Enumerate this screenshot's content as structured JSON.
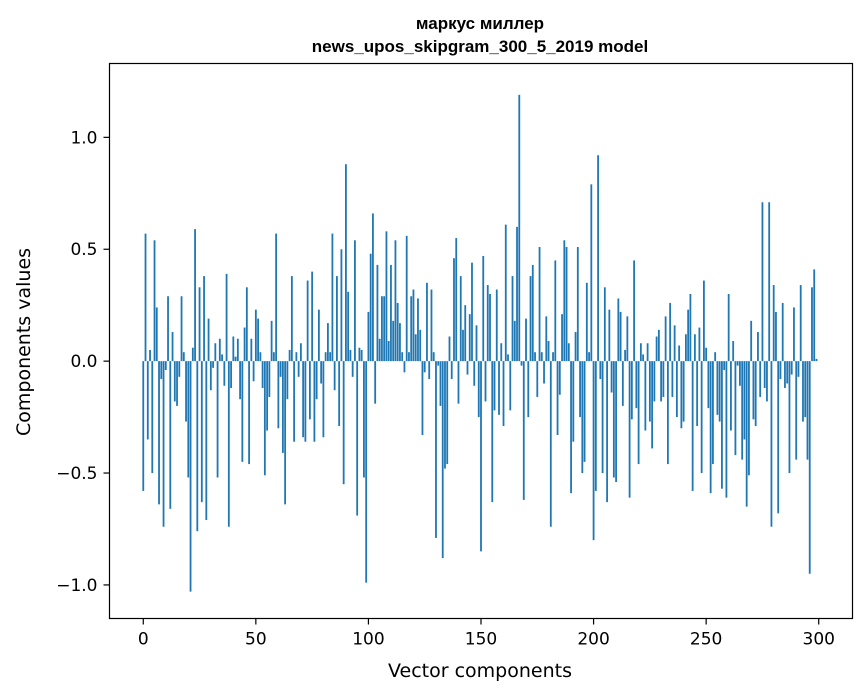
{
  "chart_data": {
    "type": "bar",
    "title": "маркус миллер",
    "subtitle": "news_upos_skipgram_300_5_2019 model",
    "xlabel": "Vector components",
    "ylabel": "Components values",
    "xlim": [
      -15,
      315
    ],
    "ylim": [
      -1.15,
      1.33
    ],
    "xticks": [
      0,
      50,
      100,
      150,
      200,
      250,
      300
    ],
    "yticks": [
      -1.0,
      -0.5,
      0.0,
      0.5,
      1.0
    ],
    "xtick_labels": [
      "0",
      "50",
      "100",
      "150",
      "200",
      "250",
      "300"
    ],
    "ytick_labels": [
      "−1.0",
      "−0.5",
      "0.0",
      "0.5",
      "1.0"
    ],
    "color": "#1f77b4",
    "values": [
      -0.58,
      0.57,
      -0.35,
      0.05,
      -0.5,
      0.54,
      0.24,
      -0.64,
      -0.08,
      -0.74,
      -0.04,
      0.29,
      -0.66,
      0.13,
      -0.18,
      -0.2,
      -0.07,
      0.29,
      0.04,
      -0.27,
      -0.52,
      -1.03,
      0.06,
      0.59,
      -0.76,
      0.33,
      -0.63,
      0.38,
      -0.71,
      0.19,
      -0.13,
      -0.03,
      0.08,
      -0.52,
      0.1,
      0.03,
      -0.11,
      0.39,
      -0.74,
      -0.12,
      0.11,
      0.02,
      0.1,
      -0.17,
      -0.45,
      0.15,
      0.33,
      -0.46,
      0.1,
      -0.09,
      0.23,
      0.19,
      0.04,
      -0.12,
      -0.51,
      -0.31,
      -0.16,
      0.18,
      0.04,
      0.57,
      -0.3,
      -0.07,
      -0.41,
      -0.64,
      -0.17,
      0.05,
      0.38,
      -0.36,
      0.04,
      -0.07,
      0.08,
      -0.34,
      -0.36,
      0.36,
      -0.26,
      0.4,
      -0.36,
      -0.17,
      0.23,
      -0.1,
      -0.34,
      0.04,
      0.17,
      0.04,
      0.57,
      -0.13,
      0.38,
      -0.29,
      0.5,
      -0.55,
      0.88,
      0.31,
      0.05,
      -0.07,
      0.54,
      -0.69,
      0.06,
      0.05,
      -0.52,
      -0.99,
      0.22,
      0.48,
      0.66,
      -0.19,
      0.43,
      0.1,
      0.29,
      0.29,
      0.58,
      0.09,
      0.43,
      0.18,
      0.54,
      0.26,
      0.17,
      0.04,
      -0.05,
      0.56,
      0.04,
      0.29,
      0.32,
      0.12,
      0.28,
      0.14,
      -0.33,
      -0.05,
      0.35,
      -0.08,
      0.32,
      0.04,
      -0.79,
      -0.02,
      -0.2,
      -0.88,
      -0.48,
      -0.46,
      0.11,
      -0.08,
      0.46,
      0.55,
      -0.19,
      0.38,
      0.14,
      0.25,
      -0.06,
      0.21,
      0.44,
      -0.11,
      0.16,
      -0.25,
      -0.85,
      0.47,
      -0.18,
      0.34,
      0.3,
      -0.63,
      -0.22,
      0.32,
      -0.24,
      0.08,
      -0.29,
      0.61,
      0.03,
      -0.22,
      0.38,
      0.18,
      0.6,
      1.19,
      -0.02,
      -0.62,
      0.19,
      -0.25,
      0.38,
      0.43,
      0.04,
      -0.16,
      0.51,
      0.04,
      -0.1,
      0.2,
      0.09,
      -0.74,
      0.04,
      0.45,
      -0.33,
      -0.15,
      0.21,
      0.54,
      0.51,
      0.08,
      -0.59,
      -0.36,
      0.13,
      0.51,
      -0.25,
      -0.5,
      -0.45,
      0.35,
      0.04,
      0.79,
      -0.8,
      -0.58,
      0.92,
      -0.08,
      -0.5,
      0.33,
      -0.63,
      0.23,
      -0.14,
      -0.52,
      -0.54,
      0.28,
      0.22,
      -0.2,
      0.05,
      0.2,
      -0.61,
      -0.26,
      0.45,
      -0.21,
      -0.46,
      0.08,
      0.03,
      -0.31,
      0.08,
      -0.27,
      -0.39,
      -0.18,
      0.11,
      0.14,
      -0.18,
      -0.16,
      0.2,
      -0.46,
      0.26,
      -0.16,
      0.16,
      -0.25,
      0.07,
      -0.3,
      -0.27,
      0.12,
      0.23,
      0.3,
      -0.58,
      0.12,
      -0.29,
      0.15,
      -0.5,
      0.36,
      0.06,
      -0.21,
      -0.59,
      -0.46,
      0.04,
      -0.24,
      -0.27,
      -0.57,
      -0.04,
      -0.61,
      0.3,
      -0.31,
      0.09,
      -0.42,
      -0.02,
      -0.11,
      -0.44,
      -0.35,
      -0.65,
      -0.51,
      0.18,
      -0.26,
      -0.29,
      0.13,
      -0.16,
      0.71,
      -0.12,
      -0.18,
      0.71,
      -0.74,
      0.34,
      0.22,
      -0.68,
      -0.08,
      0.26,
      -0.12,
      -0.1,
      -0.5,
      -0.06,
      0.24,
      -0.44,
      -0.07,
      0.34,
      -0.27,
      -0.25,
      -0.44,
      -0.95,
      0.33,
      0.41,
      0.01
    ]
  }
}
